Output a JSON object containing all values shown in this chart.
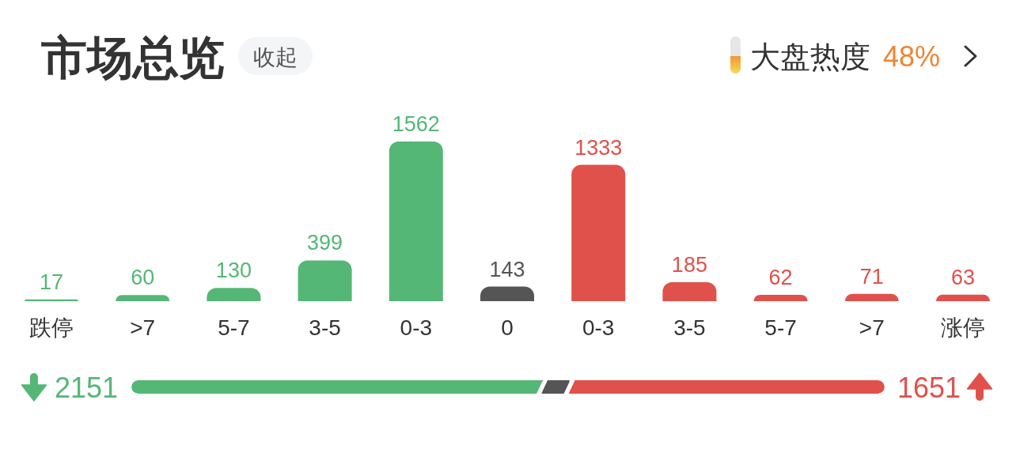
{
  "chart_data": [
    {
      "type": "bar",
      "title": "市场总览",
      "annotations": [
        "收起",
        "大盘热度",
        "48%"
      ],
      "categories": [
        "跌停",
        ">7",
        "5-7",
        "3-5",
        "0-3",
        "0",
        "0-3",
        "3-5",
        "5-7",
        ">7",
        "涨停"
      ],
      "values": [
        17,
        60,
        130,
        399,
        1562,
        143,
        1333,
        185,
        62,
        71,
        63
      ],
      "colors": [
        "#55b776",
        "#55b776",
        "#55b776",
        "#55b776",
        "#55b776",
        "#555555",
        "#e0514b",
        "#e0514b",
        "#e0514b",
        "#e0514b",
        "#e0514b"
      ],
      "data_labels": true,
      "tick_labels": "x"
    },
    {
      "type": "bar",
      "orientation": "horizontal",
      "stacked": true,
      "categories": [
        null
      ],
      "xlim": [
        0,
        3945
      ],
      "tick_labels": false,
      "series": [
        {
          "color": "#55b776",
          "values": [
            2151
          ],
          "value_labels": [
            "2151"
          ]
        },
        {
          "color": "#555555",
          "values": [
            143
          ],
          "value_labels": [
            null
          ]
        },
        {
          "color": "#e0514b",
          "values": [
            1651
          ],
          "value_labels": [
            "1651"
          ]
        }
      ]
    }
  ]
}
